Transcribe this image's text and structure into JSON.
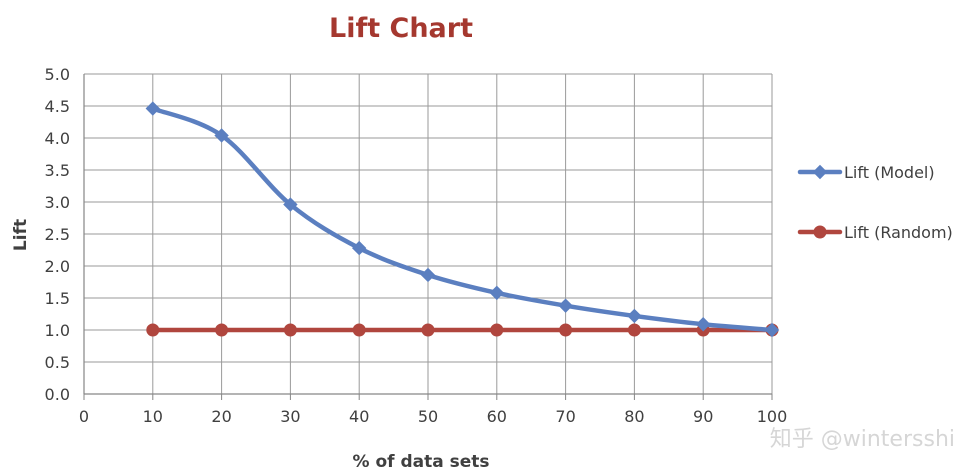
{
  "chart_data": {
    "type": "line",
    "title": "Lift Chart",
    "xlabel": "% of data sets",
    "ylabel": "Lift",
    "xlim": [
      0,
      100
    ],
    "ylim": [
      0,
      5.0
    ],
    "x_ticks": [
      "0",
      "10",
      "20",
      "30",
      "40",
      "50",
      "60",
      "70",
      "80",
      "90",
      "100"
    ],
    "y_ticks": [
      "0.0",
      "0.5",
      "1.0",
      "1.5",
      "2.0",
      "2.5",
      "3.0",
      "3.5",
      "4.0",
      "4.5",
      "5.0"
    ],
    "x": [
      10,
      20,
      30,
      40,
      50,
      60,
      70,
      80,
      90,
      100
    ],
    "series": [
      {
        "name": "Lift (Model)",
        "color": "#5b7fc0",
        "marker": "diamond",
        "values": [
          4.46,
          4.04,
          2.96,
          2.28,
          1.86,
          1.58,
          1.38,
          1.22,
          1.09,
          1.0
        ]
      },
      {
        "name": "Lift (Random)",
        "color": "#b0463e",
        "marker": "circle",
        "values": [
          1.0,
          1.0,
          1.0,
          1.0,
          1.0,
          1.0,
          1.0,
          1.0,
          1.0,
          1.0
        ]
      }
    ],
    "grid": true,
    "legend_position": "right"
  },
  "watermark": "知乎 @wintersshi"
}
